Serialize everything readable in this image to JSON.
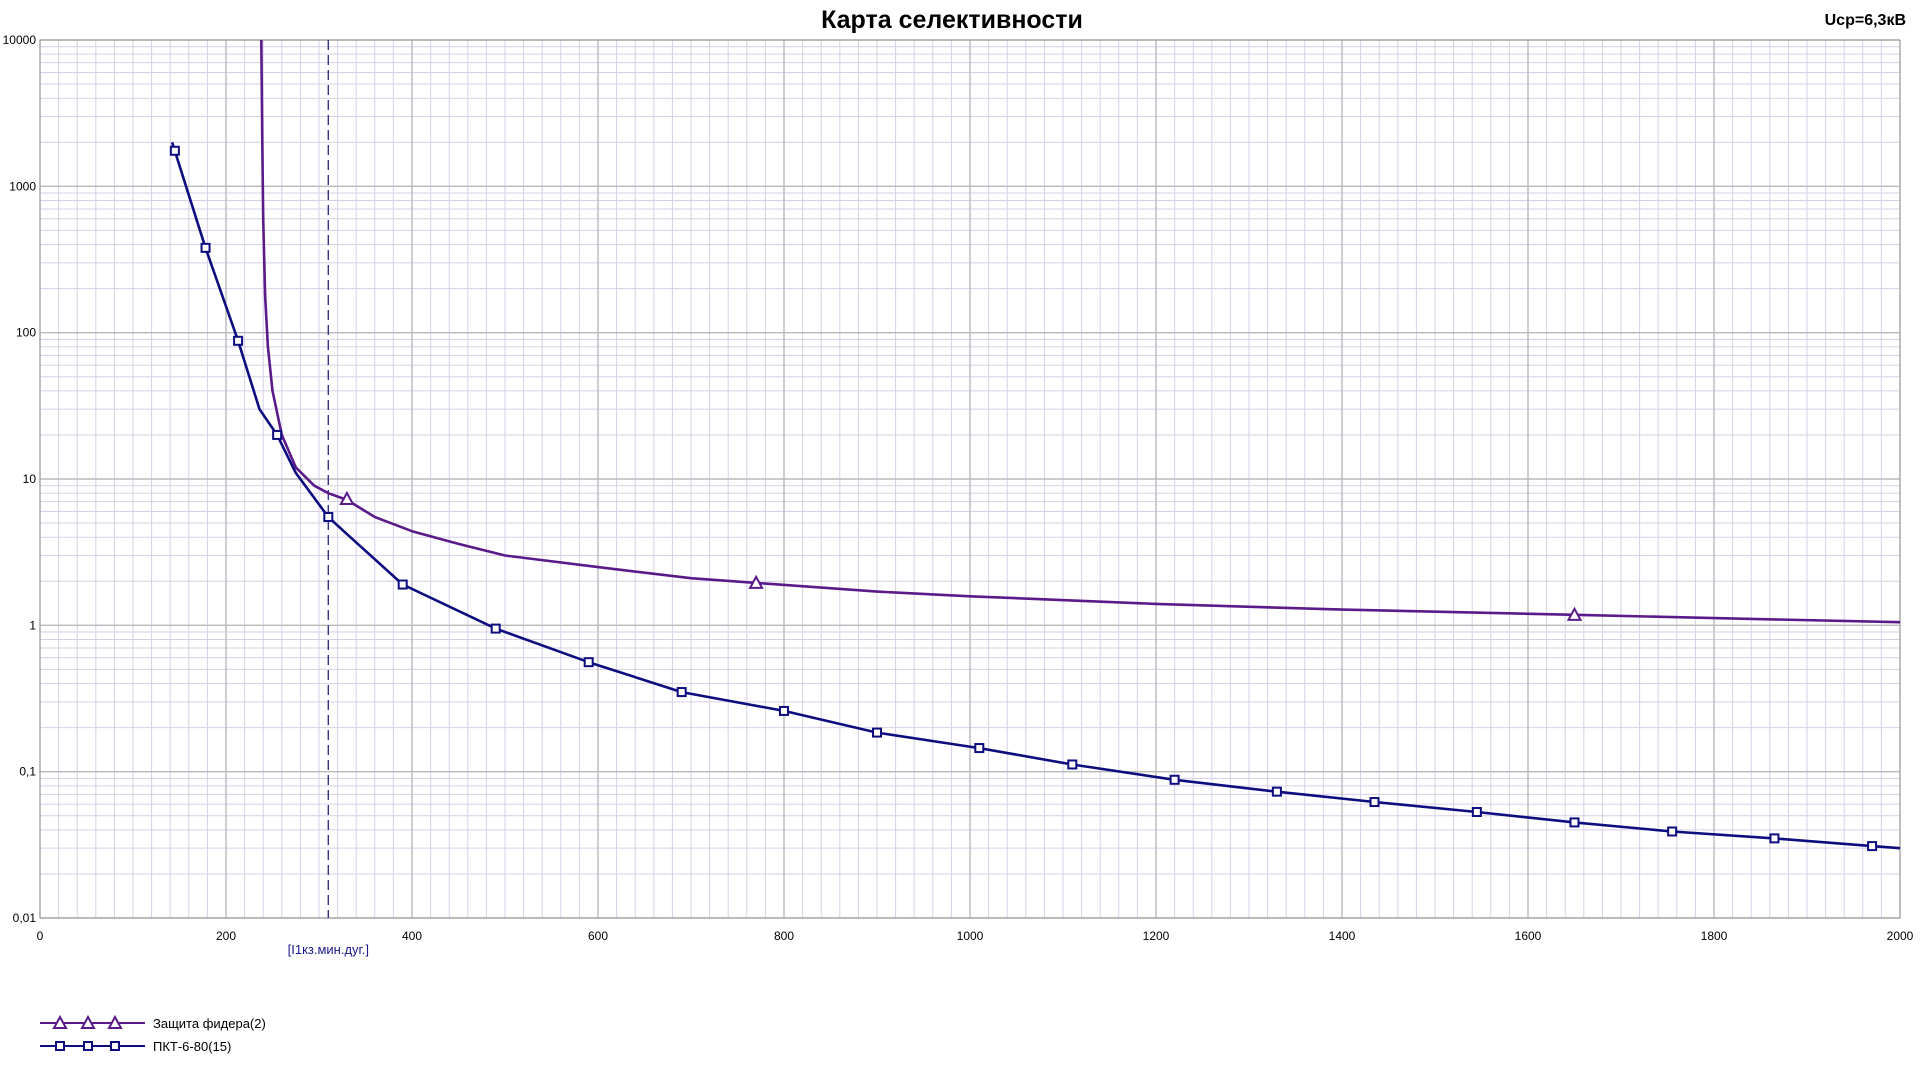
{
  "chart_data": {
    "type": "line",
    "title": "Карта селективности",
    "voltage_label": "Uср=6,3кВ",
    "xlim": [
      0,
      2000
    ],
    "ylim": [
      0.01,
      10000
    ],
    "yscale": "log",
    "grid": true,
    "x_ticks": [
      "0",
      "200",
      "400",
      "600",
      "800",
      "1000",
      "1200",
      "1400",
      "1600",
      "1800",
      "2000"
    ],
    "y_ticks": [
      "0,01",
      "0,1",
      "1",
      "10",
      "100",
      "1000",
      "10000"
    ],
    "marker_line": {
      "x": 310,
      "label": "[I1кз.мин.дуг.]",
      "color": "#33338a"
    },
    "series": [
      {
        "name": "Защита фидера(2)",
        "color": "#5a1a8a",
        "marker": "triangle",
        "x": [
          238,
          239,
          240,
          242,
          245,
          250,
          260,
          275,
          295,
          310,
          330,
          360,
          400,
          450,
          500,
          600,
          700,
          770,
          900,
          1000,
          1200,
          1400,
          1650,
          1800,
          2000
        ],
        "y": [
          10000,
          2000,
          600,
          180,
          80,
          40,
          20,
          12,
          9,
          8,
          7.2,
          5.5,
          4.4,
          3.6,
          3.0,
          2.5,
          2.1,
          1.95,
          1.7,
          1.58,
          1.4,
          1.28,
          1.18,
          1.12,
          1.05
        ],
        "marker_points": [
          [
            330,
            7.3
          ],
          [
            770,
            1.95
          ],
          [
            1650,
            1.18
          ]
        ]
      },
      {
        "name": "ПКТ-6-80(15)",
        "color": "#0d0d80",
        "marker": "square",
        "x": [
          142,
          145,
          178,
          213,
          236,
          255,
          275,
          310,
          330,
          390,
          490,
          590,
          690,
          800,
          900,
          1010,
          1110,
          1220,
          1330,
          1435,
          1545,
          1650,
          1755,
          1865,
          1970,
          2000
        ],
        "y": [
          2000,
          1750,
          380,
          88,
          30,
          20,
          11,
          5.5,
          4.2,
          1.9,
          0.95,
          0.56,
          0.35,
          0.26,
          0.185,
          0.145,
          0.112,
          0.088,
          0.073,
          0.062,
          0.053,
          0.045,
          0.039,
          0.035,
          0.031,
          0.03
        ],
        "marker_points": [
          [
            145,
            1750
          ],
          [
            178,
            380
          ],
          [
            213,
            88
          ],
          [
            255,
            20
          ],
          [
            310,
            5.5
          ],
          [
            390,
            1.9
          ],
          [
            490,
            0.95
          ],
          [
            590,
            0.56
          ],
          [
            690,
            0.35
          ],
          [
            800,
            0.26
          ],
          [
            900,
            0.185
          ],
          [
            1010,
            0.145
          ],
          [
            1110,
            0.112
          ],
          [
            1220,
            0.088
          ],
          [
            1330,
            0.073
          ],
          [
            1435,
            0.062
          ],
          [
            1545,
            0.053
          ],
          [
            1650,
            0.045
          ],
          [
            1755,
            0.039
          ],
          [
            1865,
            0.035
          ],
          [
            1970,
            0.031
          ]
        ]
      }
    ]
  }
}
